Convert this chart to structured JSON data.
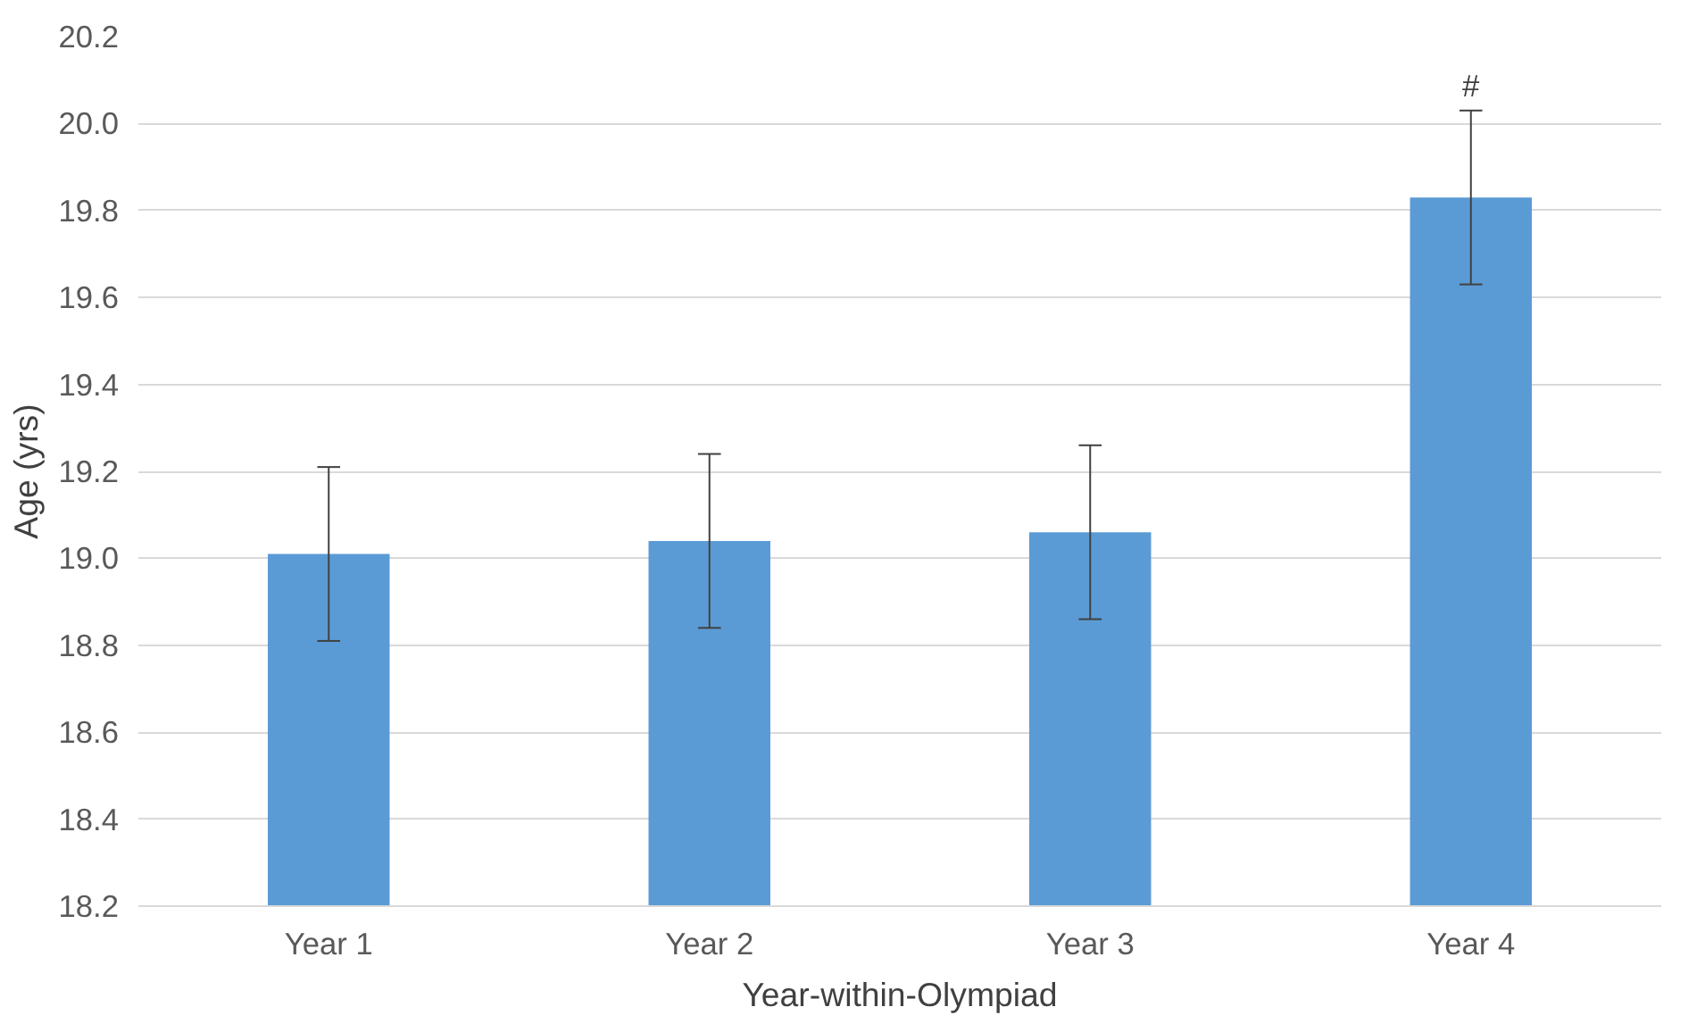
{
  "chart_data": {
    "type": "bar",
    "xlabel": "Year-within-Olympiad",
    "ylabel": "Age (yrs)",
    "categories": [
      "Year 1",
      "Year 2",
      "Year 3",
      "Year 4"
    ],
    "series": [
      {
        "color": "#5b9bd5",
        "values": [
          19.01,
          19.04,
          19.06,
          19.83
        ],
        "errors": [
          0.2,
          0.2,
          0.2,
          0.2
        ]
      }
    ],
    "ylim": [
      18.2,
      20.2
    ],
    "yticks": [
      {
        "value": 18.2,
        "label": "18.2"
      },
      {
        "value": 18.4,
        "label": "18.4"
      },
      {
        "value": 18.6,
        "label": "18.6"
      },
      {
        "value": 18.8,
        "label": "18.8"
      },
      {
        "value": 19.0,
        "label": "19.0"
      },
      {
        "value": 19.2,
        "label": "19.2"
      },
      {
        "value": 19.4,
        "label": "19.4"
      },
      {
        "value": 19.6,
        "label": "19.6"
      },
      {
        "value": 19.8,
        "label": "19.8"
      },
      {
        "value": 20.0,
        "label": "20.0"
      },
      {
        "value": 20.2,
        "label": "20.2"
      }
    ],
    "grid": "y",
    "annotations": [
      {
        "text": "#",
        "x": "Year 4",
        "y": 20.03
      }
    ]
  }
}
